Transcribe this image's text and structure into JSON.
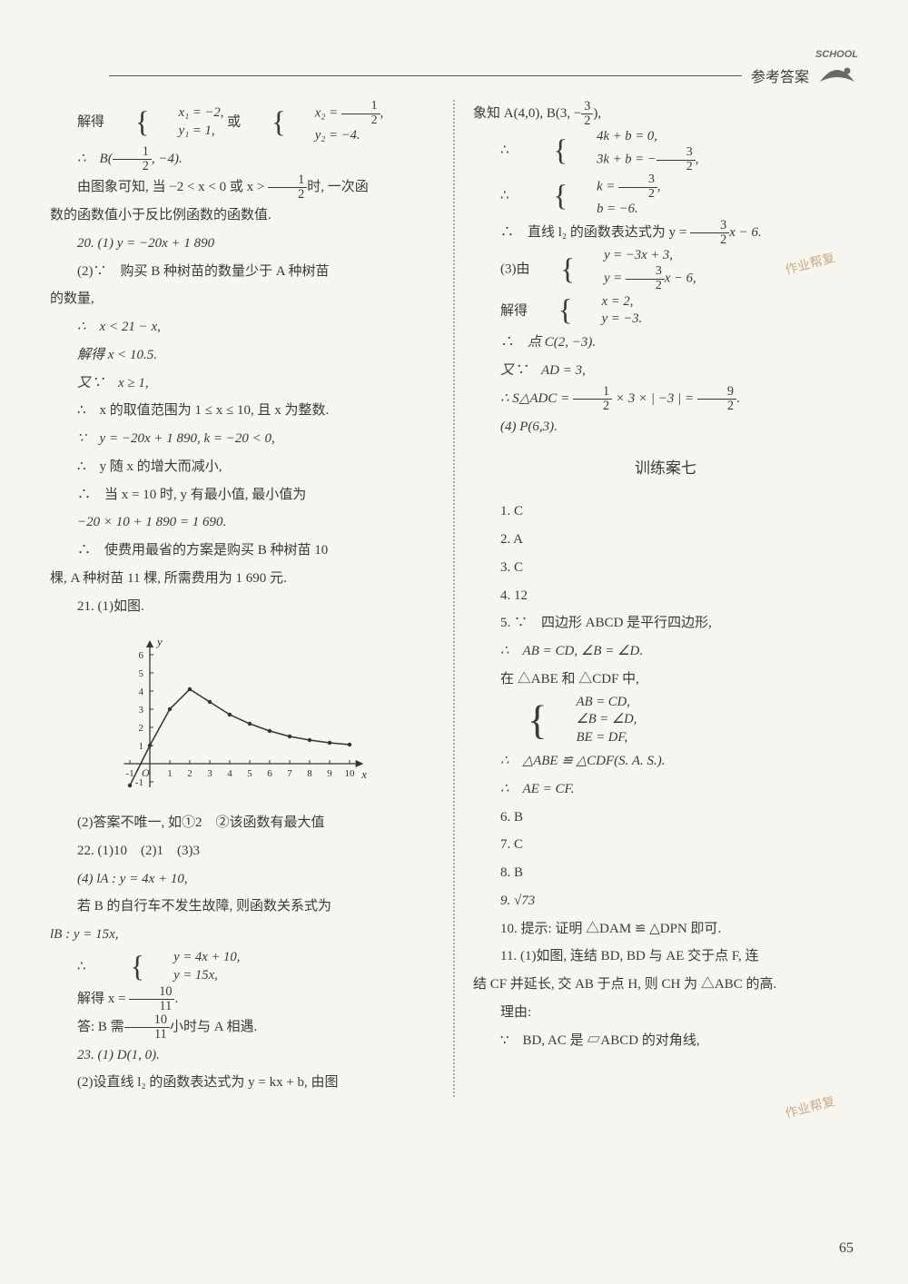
{
  "header": {
    "title": "参考答案",
    "logo_text": "SCHOOL"
  },
  "watermark": {
    "wm1": "作业帮复",
    "wm2": "作业帮复"
  },
  "page_number": "65",
  "left": {
    "l01a": "解得",
    "l01b_1": "x₁ = −2,",
    "l01b_2": "y₁ = 1,",
    "l01c": "或",
    "l01d_1": "x₂ = ",
    "l01d_1f_n": "1",
    "l01d_1f_d": "2",
    "l01d_1s": ",",
    "l01d_2": "y₂ = −4.",
    "l02a": "∴　B(",
    "l02f_n": "1",
    "l02f_d": "2",
    "l02b": ", −4).",
    "l03a": "由图象可知, 当 −2 < x < 0 或 x > ",
    "l03f_n": "1",
    "l03f_d": "2",
    "l03b": "时, 一次函",
    "l04": "数的函数值小于反比例函数的函数值.",
    "l05": "20. (1) y = −20x + 1 890",
    "l06": "(2)∵　购买 B 种树苗的数量少于 A 种树苗",
    "l07": "的数量,",
    "l08": "∴　x < 21 − x,",
    "l09": "解得 x < 10.5.",
    "l10": "又∵　x ≥ 1,",
    "l11": "∴　x 的取值范围为 1 ≤ x ≤ 10, 且 x 为整数.",
    "l12": "∵　y = −20x + 1 890, k = −20 < 0,",
    "l13": "∴　y 随 x 的增大而减小,",
    "l14": "∴　当 x = 10 时, y 有最小值, 最小值为",
    "l15": "−20 × 10 + 1 890 = 1 690.",
    "l16": "∴　使费用最省的方案是购买 B 种树苗 10",
    "l17": "棵, A 种树苗 11 棵, 所需费用为 1 690 元.",
    "l18": "21. (1)如图.",
    "l19": "(2)答案不唯一, 如①2　②该函数有最大值",
    "l20": "22. (1)10　(2)1　(3)3",
    "l21": "(4) lA : y = 4x + 10,",
    "l22": "若 B 的自行车不发生故障, 则函数关系式为",
    "l23": "lB : y = 15x,",
    "l24a": "∴",
    "l24b_1": "y = 4x + 10,",
    "l24b_2": "y = 15x,",
    "l25a": "解得 x = ",
    "l25f_n": "10",
    "l25f_d": "11",
    "l25b": ".",
    "l26a": "答: B 需",
    "l26f_n": "10",
    "l26f_d": "11",
    "l26b": "小时与 A 相遇.",
    "l27": "23. (1) D(1, 0).",
    "l28": "(2)设直线 l₂ 的函数表达式为 y = kx + b, 由图"
  },
  "graph": {
    "x_vals": [
      -1,
      0,
      1,
      2,
      3,
      4,
      5,
      6,
      7,
      8,
      9,
      10
    ],
    "y_vals": [
      -1,
      0,
      1,
      2,
      3,
      4,
      5,
      6
    ],
    "points": [
      [
        -1,
        -1.2
      ],
      [
        0,
        1
      ],
      [
        1,
        3
      ],
      [
        2,
        4.1
      ],
      [
        3,
        3.4
      ],
      [
        4,
        2.7
      ],
      [
        5,
        2.2
      ],
      [
        6,
        1.8
      ],
      [
        7,
        1.5
      ],
      [
        8,
        1.3
      ],
      [
        9,
        1.15
      ],
      [
        10,
        1.05
      ]
    ]
  },
  "right": {
    "r01a": "象知 A(4,0), B(3, −",
    "r01f_n": "3",
    "r01f_d": "2",
    "r01b": "),",
    "r02a": "∴",
    "r02b_1": "4k + b = 0,",
    "r02b_2a": "3k + b = −",
    "r02b_2f_n": "3",
    "r02b_2f_d": "2",
    "r02b_2b": ",",
    "r03a": "∴",
    "r03b_1a": "k = ",
    "r03b_1f_n": "3",
    "r03b_1f_d": "2",
    "r03b_1b": ",",
    "r03b_2": "b = −6.",
    "r04a": "∴　直线 l₂ 的函数表达式为 y = ",
    "r04f_n": "3",
    "r04f_d": "2",
    "r04b": "x − 6.",
    "r05a": "(3)由",
    "r05b_1": "y = −3x + 3,",
    "r05b_2a": "y = ",
    "r05b_2f_n": "3",
    "r05b_2f_d": "2",
    "r05b_2b": "x − 6,",
    "r06a": "解得",
    "r06b_1": "x = 2,",
    "r06b_2": "y = −3.",
    "r07": "∴　点 C(2, −3).",
    "r08": "又∵　AD = 3,",
    "r09a": "∴ S△ADC = ",
    "r09f1_n": "1",
    "r09f1_d": "2",
    "r09b": " × 3 × | −3 | = ",
    "r09f2_n": "9",
    "r09f2_d": "2",
    "r09c": ".",
    "r10": "(4) P(6,3).",
    "section_title": "训练案七",
    "s01": "1. C",
    "s02": "2. A",
    "s03": "3. C",
    "s04": "4. 12",
    "s05": "5. ∵　四边形 ABCD 是平行四边形,",
    "s06": "∴　AB = CD, ∠B = ∠D.",
    "s07": "在 △ABE 和 △CDF 中,",
    "s08_1": "AB = CD,",
    "s08_2": "∠B = ∠D,",
    "s08_3": "BE = DF,",
    "s09": "∴　△ABE ≌ △CDF(S. A. S.).",
    "s10": "∴　AE = CF.",
    "s11": "6. B",
    "s12": "7. C",
    "s13": "8. B",
    "s14": "9. √73",
    "s15": "10. 提示: 证明 △DAM ≌ △DPN 即可.",
    "s16": "11. (1)如图, 连结 BD, BD 与 AE 交于点 F, 连",
    "s17": "结 CF 并延长, 交 AB 于点 H, 则 CH 为 △ABC 的高.",
    "s18": "理由:",
    "s19": "∵　BD, AC 是 ▱ABCD 的对角线,"
  }
}
